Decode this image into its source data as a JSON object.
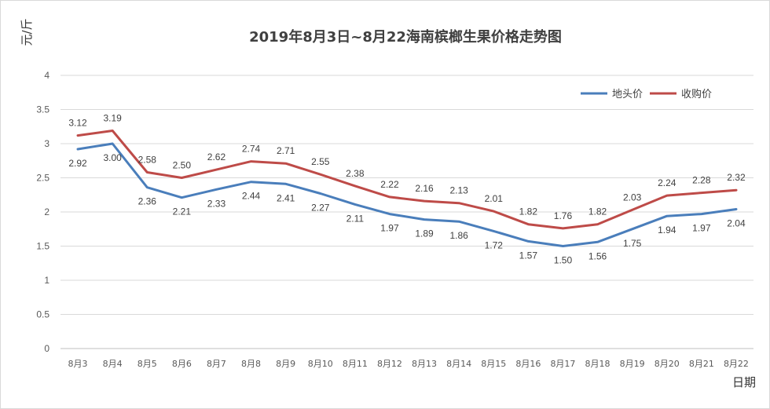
{
  "chart_data": {
    "type": "line",
    "title": "2019年8月3日~8月22海南槟榔生果价格走势图",
    "ylabel": "元/斤",
    "xlabel": "日期",
    "ylim": [
      0,
      4
    ],
    "yticks": [
      "0",
      "0.5",
      "1",
      "1.5",
      "2",
      "2.5",
      "3",
      "3.5",
      "4"
    ],
    "grid": true,
    "legend_position": "top-right",
    "categories": [
      "8月3",
      "8月4",
      "8月5",
      "8月6",
      "8月7",
      "8月8",
      "8月9",
      "8月10",
      "8月11",
      "8月12",
      "8月13",
      "8月14",
      "8月15",
      "8月16",
      "8月17",
      "8月18",
      "8月19",
      "8月20",
      "8月21",
      "8月22"
    ],
    "series": [
      {
        "name": "地头价",
        "color": "#4a7ebb",
        "values": [
          2.92,
          3.0,
          2.36,
          2.21,
          2.33,
          2.44,
          2.41,
          2.27,
          2.11,
          1.97,
          1.89,
          1.86,
          1.72,
          1.57,
          1.5,
          1.56,
          1.75,
          1.94,
          1.97,
          2.04
        ],
        "labels": [
          "2.92",
          "3.00",
          "2.36",
          "2.21",
          "2.33",
          "2.44",
          "2.41",
          "2.27",
          "2.11",
          "1.97",
          "1.89",
          "1.86",
          "1.72",
          "1.57",
          "1.50",
          "1.56",
          "1.75",
          "1.94",
          "1.97",
          "2.04"
        ]
      },
      {
        "name": "收购价",
        "color": "#be4b48",
        "values": [
          3.12,
          3.19,
          2.58,
          2.5,
          2.62,
          2.74,
          2.71,
          2.55,
          2.38,
          2.22,
          2.16,
          2.13,
          2.01,
          1.82,
          1.76,
          1.82,
          2.03,
          2.24,
          2.28,
          2.32
        ],
        "labels": [
          "3.12",
          "3.19",
          "2.58",
          "2.50",
          "2.62",
          "2.74",
          "2.71",
          "2.55",
          "2.38",
          "2.22",
          "2.16",
          "2.13",
          "2.01",
          "1.82",
          "1.76",
          "1.82",
          "2.03",
          "2.24",
          "2.28",
          "2.32"
        ]
      }
    ]
  }
}
